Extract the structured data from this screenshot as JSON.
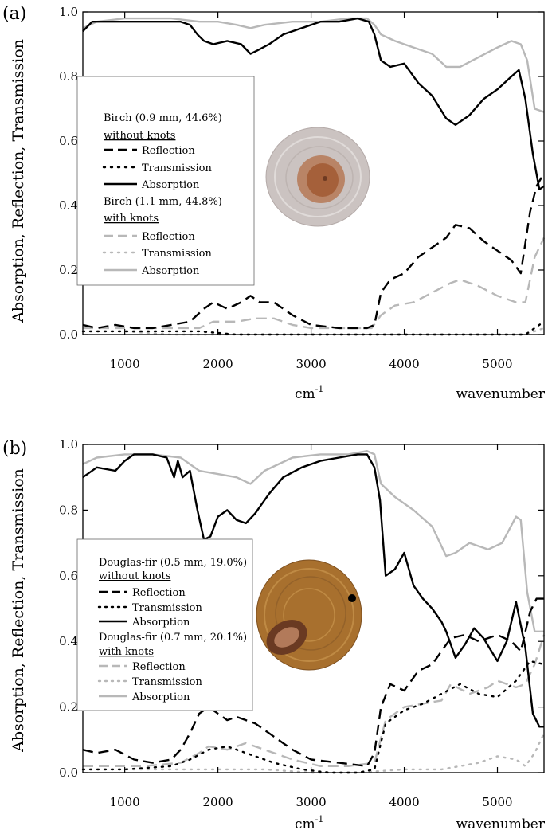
{
  "figure": {
    "panels": [
      {
        "panel_label": "(a)",
        "ylabel": "Absorption, Reflection, Transmission",
        "x_unit_label": "cm",
        "x_unit_superscript": "-1",
        "x_name_label": "wavenumber",
        "legend": {
          "group1_title": "Birch (0.9 mm, 44.6%)",
          "group1_subtitle": "without knots",
          "group2_title": "Birch (1.1 mm, 44.8%)",
          "group2_subtitle": "with knots",
          "entries": [
            "Reflection",
            "Transmission",
            "Absorption"
          ]
        },
        "sample_image": "birch-wood-disc",
        "colors": {
          "black": "#000000",
          "gray": "#b8b8b8",
          "disc_main": "#cfc6c3",
          "disc_core": "#a7643d"
        }
      },
      {
        "panel_label": "(b)",
        "ylabel": "Absorption, Reflection, Transmission",
        "x_unit_label": "cm",
        "x_unit_superscript": "-1",
        "x_name_label": "wavenumber",
        "legend": {
          "group1_title": "Douglas-fir (0.5 mm, 19.0%)",
          "group1_subtitle": "without knots",
          "group2_title": "Douglas-fir (0.7 mm, 20.1%)",
          "group2_subtitle": "with knots",
          "entries": [
            "Reflection",
            "Transmission",
            "Absorption"
          ]
        },
        "sample_image": "douglas-fir-wood-disc",
        "colors": {
          "black": "#000000",
          "gray": "#b8b8b8",
          "disc_main": "#a8702e",
          "disc_core": "#6a3a22"
        }
      }
    ]
  },
  "chart_data": [
    {
      "type": "line",
      "xlim": [
        550,
        5500
      ],
      "ylim": [
        0,
        1.0
      ],
      "xticks": [
        1000,
        2000,
        3000,
        4000,
        5000
      ],
      "xtick_labels": [
        "1000",
        "2000",
        "3000",
        "4000",
        "5000"
      ],
      "yticks": [
        0,
        0.2,
        0.4,
        0.6,
        0.8,
        1.0
      ],
      "ytick_labels": [
        "0.0",
        "0.2",
        "0.4",
        "0.6",
        "0.8",
        "1.0"
      ],
      "series": [
        {
          "name": "Reflection",
          "group": "without knots",
          "color": "black",
          "style": "dashed",
          "x": [
            550,
            700,
            900,
            1100,
            1300,
            1500,
            1700,
            1850,
            1950,
            2100,
            2250,
            2350,
            2450,
            2600,
            2800,
            3000,
            3300,
            3600,
            3680,
            3750,
            3850,
            4000,
            4150,
            4300,
            4450,
            4550,
            4700,
            4850,
            5000,
            5150,
            5250,
            5350,
            5420,
            5500
          ],
          "y": [
            0.03,
            0.02,
            0.03,
            0.02,
            0.02,
            0.03,
            0.04,
            0.08,
            0.1,
            0.08,
            0.1,
            0.12,
            0.1,
            0.1,
            0.06,
            0.03,
            0.02,
            0.02,
            0.03,
            0.13,
            0.17,
            0.19,
            0.24,
            0.27,
            0.3,
            0.34,
            0.33,
            0.29,
            0.26,
            0.23,
            0.19,
            0.38,
            0.46,
            0.5
          ]
        },
        {
          "name": "Transmission",
          "group": "without knots",
          "color": "black",
          "style": "dotted",
          "x": [
            550,
            800,
            1200,
            1600,
            1800,
            2200,
            2600,
            3000,
            3500,
            3800,
            4200,
            4600,
            5000,
            5300,
            5400,
            5500
          ],
          "y": [
            0.01,
            0.01,
            0.01,
            0.01,
            0.01,
            0.0,
            0.0,
            0.0,
            0.0,
            0.0,
            0.0,
            0.0,
            0.0,
            0.0,
            0.02,
            0.04
          ]
        },
        {
          "name": "Absorption",
          "group": "without knots",
          "color": "black",
          "style": "solid",
          "x": [
            550,
            650,
            800,
            1000,
            1200,
            1400,
            1600,
            1700,
            1780,
            1850,
            1950,
            2100,
            2250,
            2350,
            2420,
            2550,
            2700,
            2900,
            3100,
            3300,
            3500,
            3620,
            3680,
            3750,
            3850,
            4000,
            4150,
            4300,
            4450,
            4550,
            4700,
            4850,
            5000,
            5150,
            5230,
            5300,
            5380,
            5450,
            5500
          ],
          "y": [
            0.94,
            0.97,
            0.97,
            0.97,
            0.97,
            0.97,
            0.97,
            0.96,
            0.93,
            0.91,
            0.9,
            0.91,
            0.9,
            0.87,
            0.88,
            0.9,
            0.93,
            0.95,
            0.97,
            0.97,
            0.98,
            0.97,
            0.93,
            0.85,
            0.83,
            0.84,
            0.78,
            0.74,
            0.67,
            0.65,
            0.68,
            0.73,
            0.76,
            0.8,
            0.82,
            0.73,
            0.56,
            0.45,
            0.46
          ]
        },
        {
          "name": "Reflection",
          "group": "with knots",
          "color": "gray",
          "style": "dashed",
          "x": [
            550,
            800,
            1200,
            1600,
            1800,
            1950,
            2200,
            2400,
            2600,
            2800,
            3000,
            3300,
            3650,
            3750,
            3900,
            4100,
            4300,
            4500,
            4600,
            4800,
            5000,
            5200,
            5300,
            5400,
            5500
          ],
          "y": [
            0.02,
            0.02,
            0.02,
            0.02,
            0.02,
            0.04,
            0.04,
            0.05,
            0.05,
            0.03,
            0.02,
            0.02,
            0.02,
            0.06,
            0.09,
            0.1,
            0.13,
            0.16,
            0.17,
            0.15,
            0.12,
            0.1,
            0.1,
            0.24,
            0.3
          ]
        },
        {
          "name": "Transmission",
          "group": "with knots",
          "color": "gray",
          "style": "dotted",
          "x": [
            550,
            1000,
            1500,
            2000,
            2500,
            3000,
            3500,
            4000,
            4500,
            5000,
            5300,
            5400,
            5500
          ],
          "y": [
            0.01,
            0.01,
            0.0,
            0.0,
            0.0,
            0.0,
            0.0,
            0.0,
            0.0,
            0.0,
            0.0,
            0.01,
            0.02
          ]
        },
        {
          "name": "Absorption",
          "group": "with knots",
          "color": "gray",
          "style": "solid",
          "x": [
            550,
            700,
            1000,
            1500,
            1800,
            2000,
            2200,
            2350,
            2500,
            2800,
            3100,
            3400,
            3600,
            3680,
            3750,
            3900,
            4100,
            4300,
            4450,
            4600,
            4800,
            5000,
            5150,
            5250,
            5320,
            5400,
            5500
          ],
          "y": [
            0.95,
            0.97,
            0.98,
            0.98,
            0.97,
            0.97,
            0.96,
            0.95,
            0.96,
            0.97,
            0.97,
            0.98,
            0.98,
            0.96,
            0.93,
            0.91,
            0.89,
            0.87,
            0.83,
            0.83,
            0.86,
            0.89,
            0.91,
            0.9,
            0.85,
            0.7,
            0.69
          ]
        }
      ]
    },
    {
      "type": "line",
      "xlim": [
        550,
        5500
      ],
      "ylim": [
        0,
        1.0
      ],
      "xticks": [
        1000,
        2000,
        3000,
        4000,
        5000
      ],
      "xtick_labels": [
        "1000",
        "2000",
        "3000",
        "4000",
        "5000"
      ],
      "yticks": [
        0,
        0.2,
        0.4,
        0.6,
        0.8,
        1.0
      ],
      "ytick_labels": [
        "0.0",
        "0.2",
        "0.4",
        "0.6",
        "0.8",
        "1.0"
      ],
      "series": [
        {
          "name": "Reflection",
          "group": "without knots",
          "color": "black",
          "style": "dashed",
          "x": [
            550,
            700,
            900,
            1100,
            1300,
            1500,
            1600,
            1700,
            1800,
            1900,
            2000,
            2100,
            2200,
            2300,
            2400,
            2600,
            2800,
            3000,
            3300,
            3600,
            3680,
            3750,
            3850,
            4000,
            4150,
            4300,
            4500,
            4650,
            4800,
            5000,
            5150,
            5250,
            5350,
            5420,
            5500
          ],
          "y": [
            0.07,
            0.06,
            0.07,
            0.04,
            0.03,
            0.04,
            0.07,
            0.12,
            0.18,
            0.2,
            0.18,
            0.16,
            0.17,
            0.16,
            0.15,
            0.11,
            0.07,
            0.04,
            0.03,
            0.02,
            0.06,
            0.2,
            0.27,
            0.25,
            0.31,
            0.33,
            0.41,
            0.42,
            0.4,
            0.42,
            0.4,
            0.37,
            0.49,
            0.53,
            0.53
          ]
        },
        {
          "name": "Transmission",
          "group": "without knots",
          "color": "black",
          "style": "dotted",
          "x": [
            550,
            1000,
            1500,
            1700,
            1900,
            2100,
            2300,
            2600,
            2900,
            3200,
            3500,
            3680,
            3800,
            4000,
            4200,
            4400,
            4600,
            4800,
            5000,
            5200,
            5350,
            5500
          ],
          "y": [
            0.01,
            0.01,
            0.02,
            0.04,
            0.07,
            0.08,
            0.06,
            0.03,
            0.01,
            0.0,
            0.0,
            0.01,
            0.15,
            0.19,
            0.21,
            0.24,
            0.27,
            0.24,
            0.23,
            0.28,
            0.34,
            0.33
          ]
        },
        {
          "name": "Absorption",
          "group": "without knots",
          "color": "black",
          "style": "solid",
          "x": [
            550,
            700,
            900,
            1000,
            1100,
            1300,
            1450,
            1530,
            1570,
            1620,
            1700,
            1780,
            1850,
            1920,
            2000,
            2100,
            2200,
            2300,
            2400,
            2550,
            2700,
            2900,
            3100,
            3300,
            3500,
            3600,
            3680,
            3740,
            3800,
            3900,
            4000,
            4100,
            4200,
            4300,
            4400,
            4450,
            4550,
            4650,
            4750,
            4850,
            5000,
            5100,
            5200,
            5300,
            5380,
            5450,
            5500
          ],
          "y": [
            0.9,
            0.93,
            0.92,
            0.95,
            0.97,
            0.97,
            0.96,
            0.9,
            0.95,
            0.9,
            0.92,
            0.8,
            0.71,
            0.72,
            0.78,
            0.8,
            0.77,
            0.76,
            0.79,
            0.85,
            0.9,
            0.93,
            0.95,
            0.96,
            0.97,
            0.97,
            0.93,
            0.83,
            0.6,
            0.62,
            0.67,
            0.57,
            0.53,
            0.5,
            0.46,
            0.43,
            0.35,
            0.39,
            0.44,
            0.41,
            0.34,
            0.4,
            0.52,
            0.38,
            0.18,
            0.14,
            0.14
          ]
        },
        {
          "name": "Reflection",
          "group": "with knots",
          "color": "gray",
          "style": "dashed",
          "x": [
            550,
            800,
            1200,
            1600,
            1800,
            1900,
            2100,
            2300,
            2500,
            2800,
            3100,
            3400,
            3680,
            3800,
            4000,
            4200,
            4400,
            4500,
            4700,
            4900,
            5000,
            5200,
            5300,
            5400,
            5500
          ],
          "y": [
            0.02,
            0.02,
            0.02,
            0.03,
            0.06,
            0.08,
            0.07,
            0.09,
            0.07,
            0.04,
            0.02,
            0.02,
            0.03,
            0.16,
            0.2,
            0.21,
            0.22,
            0.27,
            0.24,
            0.26,
            0.28,
            0.26,
            0.27,
            0.33,
            0.42
          ]
        },
        {
          "name": "Transmission",
          "group": "with knots",
          "color": "gray",
          "style": "dotted",
          "x": [
            550,
            1000,
            1500,
            2000,
            2500,
            3000,
            3500,
            4000,
            4400,
            4800,
            5000,
            5200,
            5300,
            5400,
            5500
          ],
          "y": [
            0.01,
            0.01,
            0.01,
            0.01,
            0.01,
            0.0,
            0.0,
            0.01,
            0.01,
            0.03,
            0.05,
            0.04,
            0.02,
            0.06,
            0.12
          ]
        },
        {
          "name": "Absorption",
          "group": "with knots",
          "color": "gray",
          "style": "solid",
          "x": [
            550,
            700,
            1000,
            1300,
            1600,
            1800,
            2000,
            2200,
            2350,
            2500,
            2800,
            3100,
            3400,
            3600,
            3680,
            3750,
            3900,
            4100,
            4300,
            4450,
            4550,
            4700,
            4900,
            5050,
            5200,
            5250,
            5320,
            5400,
            5500
          ],
          "y": [
            0.94,
            0.96,
            0.97,
            0.97,
            0.96,
            0.92,
            0.91,
            0.9,
            0.88,
            0.92,
            0.96,
            0.97,
            0.97,
            0.98,
            0.97,
            0.88,
            0.84,
            0.8,
            0.75,
            0.66,
            0.67,
            0.7,
            0.68,
            0.7,
            0.78,
            0.77,
            0.55,
            0.43,
            0.43
          ]
        }
      ]
    }
  ]
}
